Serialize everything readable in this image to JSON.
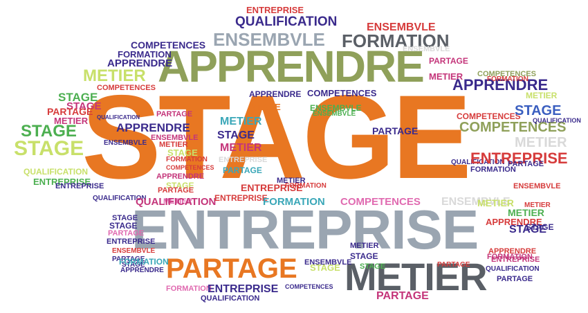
{
  "cloud": {
    "colors": {
      "orange": "#e87722",
      "olive": "#8fa05a",
      "slate": "#9aa5b1",
      "dark": "#5a5f66",
      "purple": "#3a2a8c",
      "lime": "#c8e06a",
      "magenta": "#c4357a",
      "teal": "#3aa7b8",
      "green": "#4caf50",
      "red": "#d63b3b",
      "lightgray": "#d9d9d9",
      "pink": "#e06ab0",
      "blue": "#3b5fc0"
    },
    "words": [
      {
        "text": "STAGE"
      },
      {
        "text": "ENTREPRISE"
      },
      {
        "text": "APPRENDRE"
      },
      {
        "text": "METIER"
      },
      {
        "text": "PARTAGE"
      },
      {
        "text": "ENSEMBVLE"
      },
      {
        "text": "FORMATION"
      },
      {
        "text": "QUALIFICATION"
      },
      {
        "text": "ENTREPRISE"
      },
      {
        "text": "COMPETENCES"
      },
      {
        "text": "ENSEMBVLE"
      },
      {
        "text": "PARTAGE"
      },
      {
        "text": "METIER"
      },
      {
        "text": "ENSEMBVLE"
      },
      {
        "text": "FORMATION"
      },
      {
        "text": "APPRENDRE"
      },
      {
        "text": "METIER"
      },
      {
        "text": "STAGE"
      },
      {
        "text": "COMPETENCES"
      },
      {
        "text": "STAGE"
      },
      {
        "text": "ENTREPRISE"
      },
      {
        "text": "STAGE"
      },
      {
        "text": "APPRENDRE"
      },
      {
        "text": "STAGE"
      },
      {
        "text": "PARTAGE"
      },
      {
        "text": "METIER"
      },
      {
        "text": "PARTAGE"
      },
      {
        "text": "METIER"
      },
      {
        "text": "QUALIFICATION"
      },
      {
        "text": "STAGE"
      },
      {
        "text": "FORMATION"
      },
      {
        "text": "COMPETENCES"
      },
      {
        "text": "ENSEMBVLE"
      },
      {
        "text": "APPRENDRE"
      },
      {
        "text": "STAGE"
      },
      {
        "text": "STAGE"
      },
      {
        "text": "ENTREPRISE"
      },
      {
        "text": "PARTAGE"
      },
      {
        "text": "METIER"
      },
      {
        "text": "QUALIFICATION"
      },
      {
        "text": "ENTREPRISE"
      },
      {
        "text": "PARTAGE"
      },
      {
        "text": "ENSEMBVLE"
      },
      {
        "text": "PARTAGE"
      },
      {
        "text": "APPRENDRE"
      },
      {
        "text": "STAGE"
      },
      {
        "text": "ENSEMBVLE"
      },
      {
        "text": "STAGE"
      },
      {
        "text": "APPRENDRE"
      },
      {
        "text": "METIER"
      },
      {
        "text": "COMPETENCES"
      },
      {
        "text": "ENTREPRISE"
      },
      {
        "text": "QUALIFICATION"
      },
      {
        "text": "ENTREPRISE"
      },
      {
        "text": "FORMATION"
      },
      {
        "text": "COMPETENCES"
      },
      {
        "text": "PARTAGE"
      },
      {
        "text": "QUALIFICATION"
      },
      {
        "text": "METIER"
      },
      {
        "text": "STAGE"
      },
      {
        "text": "PARTAGE"
      },
      {
        "text": "ENSEMBVLE"
      },
      {
        "text": "FORMATION"
      },
      {
        "text": "FORMATION"
      },
      {
        "text": "METIER"
      },
      {
        "text": "APPRENDRE"
      },
      {
        "text": "COMPETENCES"
      },
      {
        "text": "ENSEMBVLE"
      },
      {
        "text": "STAGE"
      },
      {
        "text": "APPRENDRE"
      },
      {
        "text": "FORMATION"
      },
      {
        "text": "STAGE"
      },
      {
        "text": "ENSEMBVLE"
      },
      {
        "text": "METIER"
      },
      {
        "text": "QUALIFICATION"
      },
      {
        "text": "PARTAGE"
      },
      {
        "text": "STAGE"
      },
      {
        "text": "METIER"
      },
      {
        "text": "COMPETENCES"
      },
      {
        "text": "ENTREPRISE"
      },
      {
        "text": "FORMATION"
      },
      {
        "text": "PARTAGE"
      },
      {
        "text": "ENTREPRISE"
      },
      {
        "text": "QUALIFICATION"
      },
      {
        "text": "COMPETENCES"
      },
      {
        "text": "METIER"
      },
      {
        "text": "STAGE"
      },
      {
        "text": "QUALIFICATION"
      },
      {
        "text": "ENSEMBVLE"
      },
      {
        "text": "PARTAGE"
      },
      {
        "text": "METIER"
      },
      {
        "text": "ENTREPRISE"
      },
      {
        "text": "STAGE"
      },
      {
        "text": "APPRENDRE"
      },
      {
        "text": "FORMATION"
      },
      {
        "text": "COMPETENCES"
      },
      {
        "text": "METIER"
      },
      {
        "text": "STAGE"
      },
      {
        "text": "ENSEMBVLE"
      },
      {
        "text": "ENTREPRISE"
      },
      {
        "text": "QUALIFICATION"
      },
      {
        "text": "METIER"
      },
      {
        "text": "PARTAGE"
      },
      {
        "text": "STAGE"
      },
      {
        "text": "FORMATION"
      }
    ]
  }
}
